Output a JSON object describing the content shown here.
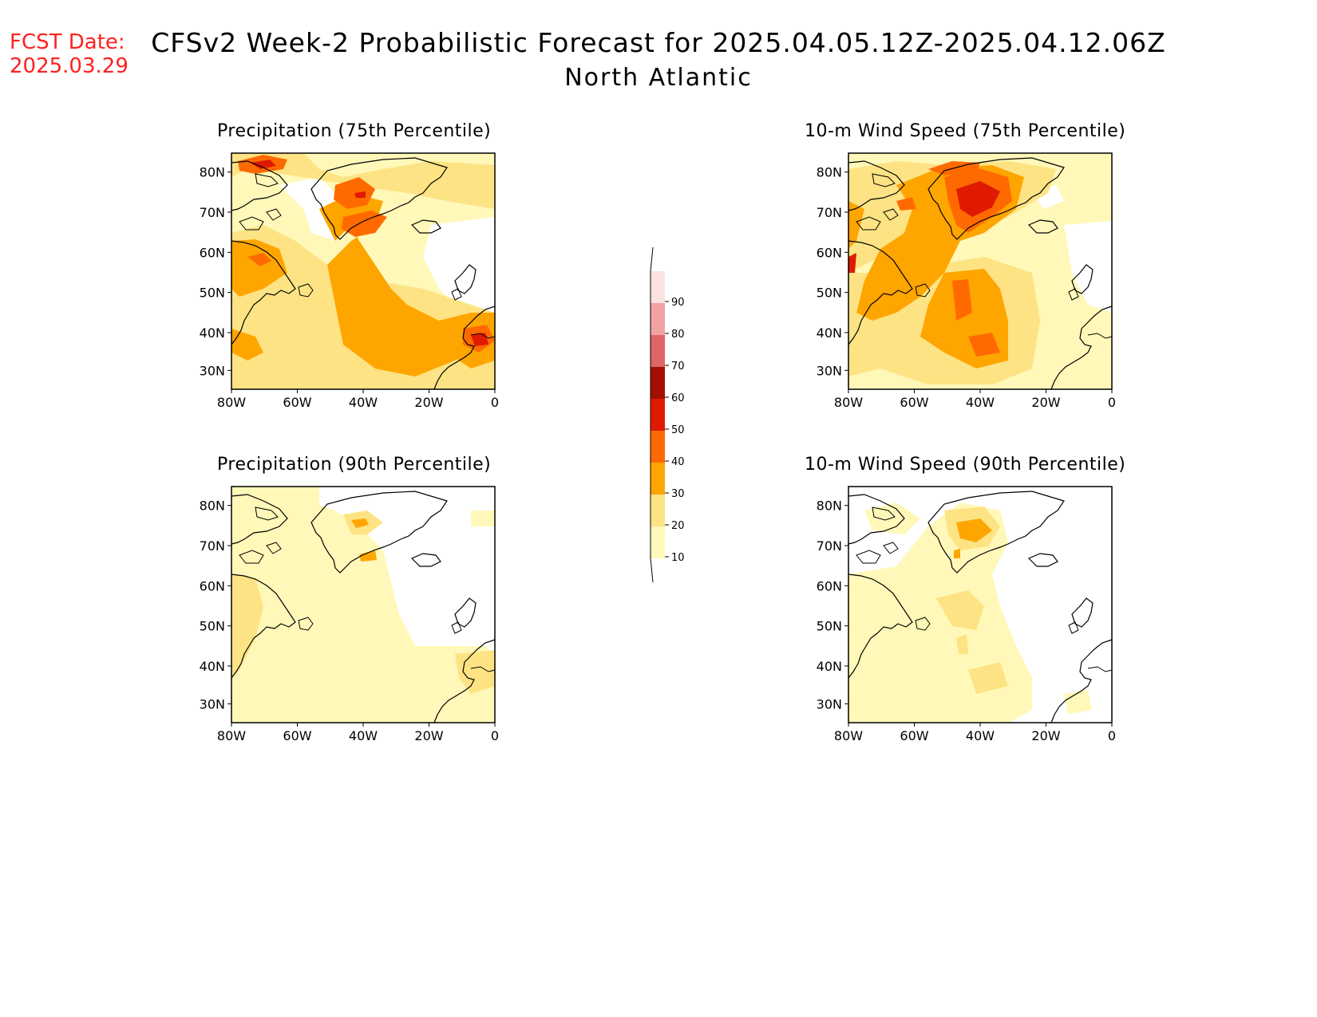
{
  "header": {
    "fcst_label": "FCST Date:",
    "fcst_date": "2025.03.29",
    "title": "CFSv2 Week-2 Probabilistic Forecast for 2025.04.05.12Z-2025.04.12.06Z",
    "subtitle": "North Atlantic"
  },
  "axes": {
    "lat_labels": [
      "80N",
      "70N",
      "60N",
      "50N",
      "40N",
      "30N"
    ],
    "lon_labels": [
      "80W",
      "60W",
      "40W",
      "20W",
      "0"
    ]
  },
  "panels": [
    {
      "id": "precip75",
      "title": "Precipitation (75th Percentile)"
    },
    {
      "id": "wind75",
      "title": "10-m Wind Speed (75th Percentile)"
    },
    {
      "id": "precip90",
      "title": "Precipitation (90th Percentile)"
    },
    {
      "id": "wind90",
      "title": "10-m Wind Speed (90th Percentile)"
    }
  ],
  "colorbar": {
    "levels": [
      "10",
      "20",
      "30",
      "40",
      "50",
      "60",
      "70",
      "80",
      "90"
    ],
    "colors": [
      "#fff8b8",
      "#fde383",
      "#ffa500",
      "#ff6a00",
      "#e01a00",
      "#a30f00",
      "#e06666",
      "#f2a2a2",
      "#fde2e2"
    ]
  }
}
